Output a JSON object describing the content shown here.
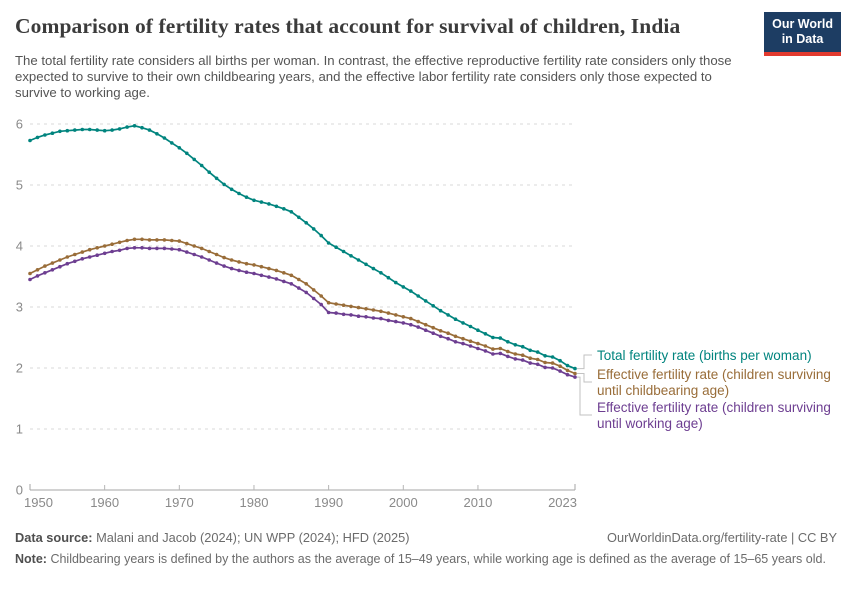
{
  "header": {
    "title": "Comparison of fertility rates that account for survival of children, India",
    "subtitle": "The total fertility rate considers all births per woman. In contrast, the effective reproductive fertility rate considers only those expected to survive to their own childbearing years, and the effective labor fertility rate considers only those expected to survive to working age.",
    "logo": {
      "line1": "Our World",
      "line2": "in Data",
      "bg": "#1D3D63",
      "accent": "#E23A2E"
    }
  },
  "chart_data": {
    "type": "line",
    "title": "Comparison of fertility rates that account for survival of children, India",
    "xlabel": "",
    "ylabel": "",
    "x_range": [
      1950,
      2023
    ],
    "x_step": 1,
    "x_ticks": [
      1950,
      1960,
      1970,
      1980,
      1990,
      2000,
      2010,
      2023
    ],
    "y_ticks": [
      0,
      1,
      2,
      3,
      4,
      5,
      6
    ],
    "ylim": [
      0,
      6.2
    ],
    "grid": "horizontal-dashed",
    "legend_position": "right-of-line-ends",
    "series": [
      {
        "id": "total-fertility-rate",
        "name": "Total fertility rate (births per woman)",
        "label_lines": [
          "Total fertility rate (births per woman)"
        ],
        "color": "#00847E",
        "values": [
          5.73,
          5.78,
          5.82,
          5.85,
          5.88,
          5.89,
          5.9,
          5.91,
          5.91,
          5.9,
          5.89,
          5.9,
          5.92,
          5.95,
          5.97,
          5.94,
          5.9,
          5.84,
          5.77,
          5.69,
          5.61,
          5.52,
          5.42,
          5.32,
          5.21,
          5.11,
          5.01,
          4.93,
          4.86,
          4.8,
          4.75,
          4.72,
          4.69,
          4.65,
          4.61,
          4.56,
          4.47,
          4.38,
          4.28,
          4.17,
          4.05,
          3.98,
          3.91,
          3.84,
          3.77,
          3.7,
          3.63,
          3.56,
          3.48,
          3.4,
          3.33,
          3.26,
          3.18,
          3.1,
          3.02,
          2.94,
          2.87,
          2.8,
          2.74,
          2.68,
          2.62,
          2.56,
          2.5,
          2.49,
          2.43,
          2.38,
          2.35,
          2.29,
          2.26,
          2.2,
          2.18,
          2.12,
          2.04,
          1.99
        ]
      },
      {
        "id": "effective-fertility-childbearing",
        "name": "Effective fertility rate (children surviving until childbearing age)",
        "label_lines": [
          "Effective fertility rate (children surviving",
          "until childbearing age)"
        ],
        "color": "#996D39",
        "values": [
          3.55,
          3.61,
          3.67,
          3.72,
          3.77,
          3.82,
          3.86,
          3.9,
          3.94,
          3.97,
          4.0,
          4.03,
          4.06,
          4.09,
          4.11,
          4.11,
          4.1,
          4.1,
          4.1,
          4.09,
          4.08,
          4.04,
          4.0,
          3.96,
          3.91,
          3.86,
          3.81,
          3.77,
          3.74,
          3.71,
          3.69,
          3.66,
          3.63,
          3.6,
          3.56,
          3.52,
          3.45,
          3.38,
          3.28,
          3.18,
          3.07,
          3.05,
          3.03,
          3.01,
          2.99,
          2.97,
          2.95,
          2.93,
          2.9,
          2.87,
          2.84,
          2.81,
          2.76,
          2.71,
          2.66,
          2.61,
          2.57,
          2.52,
          2.48,
          2.44,
          2.4,
          2.36,
          2.31,
          2.32,
          2.27,
          2.23,
          2.21,
          2.16,
          2.14,
          2.09,
          2.08,
          2.03,
          1.96,
          1.91
        ]
      },
      {
        "id": "effective-fertility-working",
        "name": "Effective fertility rate (children surviving until working age)",
        "label_lines": [
          "Effective fertility rate (children surviving",
          "until working age)"
        ],
        "color": "#6D3E91",
        "values": [
          3.45,
          3.51,
          3.56,
          3.61,
          3.66,
          3.71,
          3.75,
          3.79,
          3.82,
          3.85,
          3.88,
          3.91,
          3.93,
          3.96,
          3.97,
          3.97,
          3.96,
          3.96,
          3.96,
          3.95,
          3.94,
          3.9,
          3.86,
          3.82,
          3.77,
          3.72,
          3.67,
          3.63,
          3.6,
          3.57,
          3.55,
          3.52,
          3.49,
          3.46,
          3.42,
          3.38,
          3.31,
          3.24,
          3.14,
          3.04,
          2.91,
          2.9,
          2.88,
          2.87,
          2.85,
          2.84,
          2.82,
          2.81,
          2.78,
          2.76,
          2.74,
          2.71,
          2.67,
          2.62,
          2.57,
          2.52,
          2.48,
          2.43,
          2.4,
          2.36,
          2.32,
          2.28,
          2.23,
          2.24,
          2.19,
          2.15,
          2.13,
          2.08,
          2.06,
          2.01,
          2.0,
          1.95,
          1.89,
          1.85
        ]
      }
    ]
  },
  "footer": {
    "datasource_label": "Data source:",
    "datasource_text": "Malani and Jacob (2024); UN WPP (2024); HFD (2025)",
    "rights": "OurWorldinData.org/fertility-rate | CC BY",
    "note_label": "Note:",
    "note_text": "Childbearing years is defined by the authors as the average of 15–49 years, while working age is defined as the average of 15–65 years old."
  }
}
